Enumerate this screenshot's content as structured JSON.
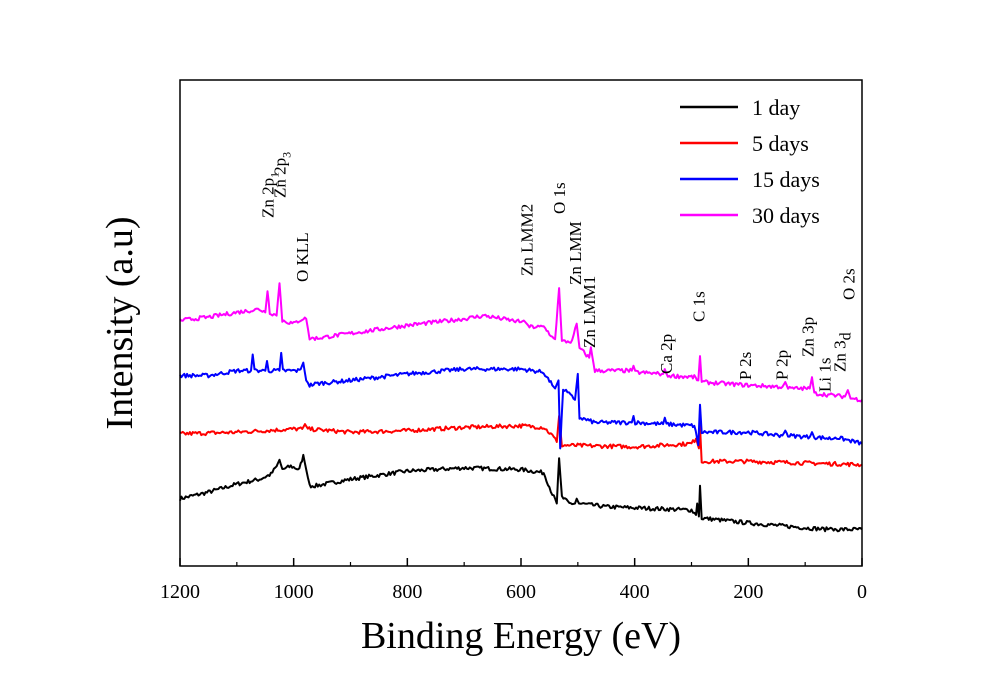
{
  "chart_data": {
    "type": "line",
    "xlabel": "Binding Energy (eV)",
    "ylabel": "Intensity (a.u)",
    "xlim": [
      1200,
      0
    ],
    "x_reversed": true,
    "x_ticks": [
      1200,
      1000,
      800,
      600,
      400,
      200,
      0
    ],
    "y_ticks_shown": false,
    "grid": false,
    "legend_position": "top-right",
    "series": [
      {
        "name": "1 day",
        "color": "#000000",
        "points": [
          [
            1200,
            0.07
          ],
          [
            1150,
            0.11
          ],
          [
            1100,
            0.16
          ],
          [
            1060,
            0.19
          ],
          [
            1040,
            0.22
          ],
          [
            1030,
            0.27
          ],
          [
            1025,
            0.31
          ],
          [
            1020,
            0.25
          ],
          [
            1005,
            0.27
          ],
          [
            990,
            0.25
          ],
          [
            983,
            0.34
          ],
          [
            978,
            0.25
          ],
          [
            972,
            0.15
          ],
          [
            960,
            0.15
          ],
          [
            900,
            0.19
          ],
          [
            800,
            0.24
          ],
          [
            700,
            0.26
          ],
          [
            600,
            0.25
          ],
          [
            560,
            0.23
          ],
          [
            545,
            0.1
          ],
          [
            537,
            0.04
          ],
          [
            533,
            0.32
          ],
          [
            528,
            0.08
          ],
          [
            515,
            0.04
          ],
          [
            505,
            0.04
          ],
          [
            502,
            0.07
          ],
          [
            498,
            0.04
          ],
          [
            450,
            0.02
          ],
          [
            300,
            0.0
          ],
          [
            292,
            -0.03
          ],
          [
            290,
            0.04
          ],
          [
            287,
            -0.04
          ],
          [
            285,
            0.15
          ],
          [
            282,
            -0.05
          ],
          [
            200,
            -0.08
          ],
          [
            100,
            -0.11
          ],
          [
            60,
            -0.12
          ],
          [
            55,
            -0.11
          ],
          [
            50,
            -0.12
          ],
          [
            0,
            -0.12
          ]
        ]
      },
      {
        "name": "5 days",
        "color": "#ff0000",
        "points": [
          [
            1200,
            0.47
          ],
          [
            1100,
            0.48
          ],
          [
            1000,
            0.5
          ],
          [
            985,
            0.5
          ],
          [
            980,
            0.53
          ],
          [
            975,
            0.5
          ],
          [
            900,
            0.48
          ],
          [
            800,
            0.49
          ],
          [
            700,
            0.51
          ],
          [
            600,
            0.52
          ],
          [
            560,
            0.51
          ],
          [
            545,
            0.46
          ],
          [
            537,
            0.42
          ],
          [
            533,
            0.58
          ],
          [
            528,
            0.4
          ],
          [
            400,
            0.39
          ],
          [
            300,
            0.41
          ],
          [
            292,
            0.44
          ],
          [
            287,
            0.38
          ],
          [
            285,
            0.52
          ],
          [
            282,
            0.3
          ],
          [
            200,
            0.3
          ],
          [
            100,
            0.29
          ],
          [
            0,
            0.28
          ]
        ]
      },
      {
        "name": "15 days",
        "color": "#0000ff",
        "points": [
          [
            1200,
            0.83
          ],
          [
            1150,
            0.83
          ],
          [
            1100,
            0.86
          ],
          [
            1075,
            0.86
          ],
          [
            1072,
            0.96
          ],
          [
            1069,
            0.86
          ],
          [
            1050,
            0.86
          ],
          [
            1047,
            0.92
          ],
          [
            1044,
            0.86
          ],
          [
            1025,
            0.86
          ],
          [
            1022,
            0.97
          ],
          [
            1019,
            0.86
          ],
          [
            990,
            0.86
          ],
          [
            983,
            0.91
          ],
          [
            978,
            0.8
          ],
          [
            972,
            0.77
          ],
          [
            960,
            0.78
          ],
          [
            900,
            0.8
          ],
          [
            800,
            0.84
          ],
          [
            700,
            0.87
          ],
          [
            600,
            0.87
          ],
          [
            560,
            0.85
          ],
          [
            545,
            0.77
          ],
          [
            540,
            0.75
          ],
          [
            534,
            0.8
          ],
          [
            531,
            0.38
          ],
          [
            526,
            0.75
          ],
          [
            505,
            0.68
          ],
          [
            500,
            0.84
          ],
          [
            497,
            0.57
          ],
          [
            470,
            0.54
          ],
          [
            405,
            0.54
          ],
          [
            402,
            0.58
          ],
          [
            399,
            0.54
          ],
          [
            350,
            0.53
          ],
          [
            347,
            0.57
          ],
          [
            344,
            0.53
          ],
          [
            295,
            0.52
          ],
          [
            288,
            0.4
          ],
          [
            285,
            0.65
          ],
          [
            282,
            0.48
          ],
          [
            200,
            0.48
          ],
          [
            140,
            0.46
          ],
          [
            135,
            0.49
          ],
          [
            130,
            0.46
          ],
          [
            92,
            0.45
          ],
          [
            88,
            0.48
          ],
          [
            84,
            0.45
          ],
          [
            50,
            0.44
          ],
          [
            47,
            0.45
          ],
          [
            0,
            0.41
          ]
        ]
      },
      {
        "name": "30 days",
        "color": "#ff00ff",
        "points": [
          [
            1200,
            1.17
          ],
          [
            1150,
            1.19
          ],
          [
            1100,
            1.22
          ],
          [
            1060,
            1.24
          ],
          [
            1050,
            1.22
          ],
          [
            1046,
            1.35
          ],
          [
            1042,
            1.22
          ],
          [
            1030,
            1.2
          ],
          [
            1025,
            1.4
          ],
          [
            1020,
            1.17
          ],
          [
            1000,
            1.15
          ],
          [
            985,
            1.18
          ],
          [
            978,
            1.18
          ],
          [
            972,
            1.06
          ],
          [
            960,
            1.06
          ],
          [
            900,
            1.09
          ],
          [
            800,
            1.14
          ],
          [
            700,
            1.18
          ],
          [
            665,
            1.2
          ],
          [
            600,
            1.16
          ],
          [
            595,
            1.17
          ],
          [
            590,
            1.15
          ],
          [
            585,
            1.13
          ],
          [
            560,
            1.13
          ],
          [
            545,
            1.07
          ],
          [
            540,
            1.05
          ],
          [
            533,
            1.37
          ],
          [
            528,
            1.04
          ],
          [
            510,
            1.04
          ],
          [
            502,
            1.15
          ],
          [
            497,
            1.0
          ],
          [
            480,
            0.94
          ],
          [
            477,
            1.0
          ],
          [
            470,
            0.86
          ],
          [
            405,
            0.86
          ],
          [
            402,
            0.89
          ],
          [
            399,
            0.85
          ],
          [
            350,
            0.84
          ],
          [
            347,
            0.87
          ],
          [
            344,
            0.83
          ],
          [
            295,
            0.82
          ],
          [
            288,
            0.8
          ],
          [
            285,
            0.95
          ],
          [
            282,
            0.79
          ],
          [
            200,
            0.77
          ],
          [
            140,
            0.76
          ],
          [
            135,
            0.79
          ],
          [
            130,
            0.75
          ],
          [
            92,
            0.75
          ],
          [
            88,
            0.82
          ],
          [
            84,
            0.72
          ],
          [
            30,
            0.7
          ],
          [
            25,
            0.74
          ],
          [
            20,
            0.69
          ],
          [
            0,
            0.68
          ]
        ]
      }
    ],
    "annotations": [
      "Zn 2p1",
      "Zn 2p3",
      "O KLL",
      "Zn LMM2",
      "O 1s",
      "Zn LMM",
      "Zn LMM1",
      "Ca 2p",
      "C 1s",
      "P 2s",
      "P 2p",
      "Zn 3p",
      "Li 1s",
      "Zn 3d",
      "O 2s"
    ]
  }
}
